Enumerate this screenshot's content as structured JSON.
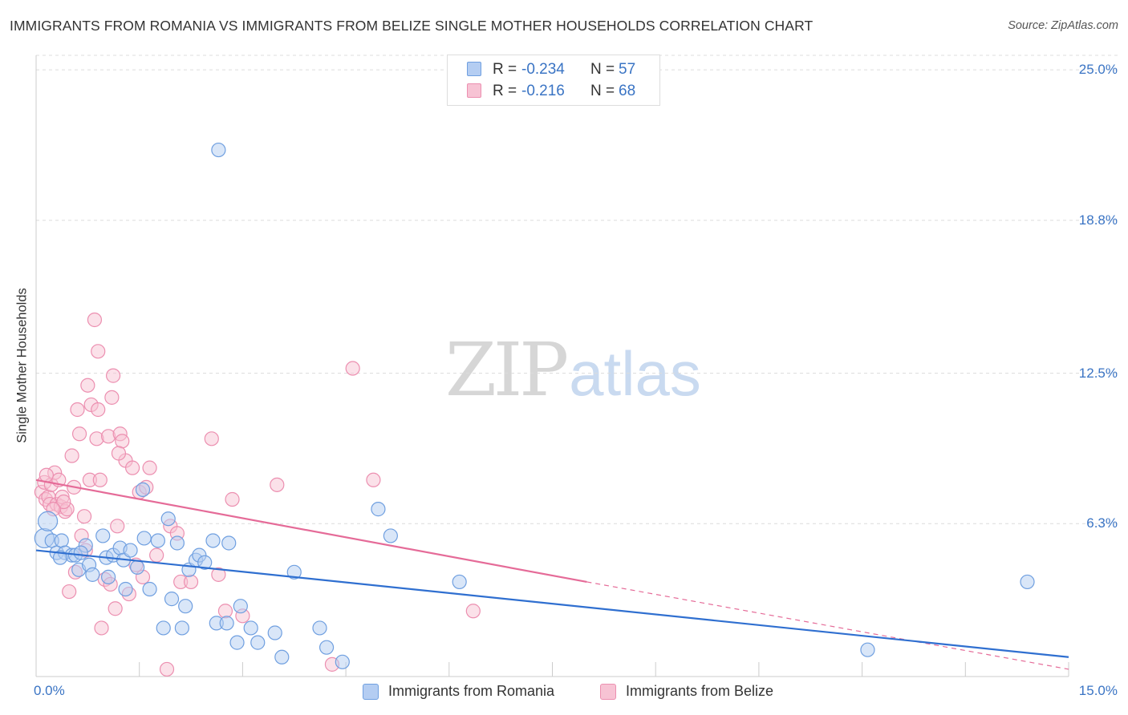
{
  "title": "IMMIGRANTS FROM ROMANIA VS IMMIGRANTS FROM BELIZE SINGLE MOTHER HOUSEHOLDS CORRELATION CHART",
  "source": "Source: ZipAtlas.com",
  "watermark": {
    "zip": "ZIP",
    "atlas": "atlas"
  },
  "colors": {
    "romania": "#6f9fe0",
    "romania_fill": "#b4cdf2",
    "belize": "#ec8fb0",
    "belize_fill": "#f7c3d4",
    "romania_line": "#2f6fd0",
    "belize_line": "#e56b98",
    "tick_text": "#3a74c4"
  },
  "legend": {
    "romania": {
      "r_label": "R =",
      "r_value": "-0.234",
      "n_label": "N =",
      "n_value": "57"
    },
    "belize": {
      "r_label": "R =",
      "r_value": "-0.216",
      "n_label": "N =",
      "n_value": "68"
    }
  },
  "chart_data": {
    "type": "scatter",
    "title": "IMMIGRANTS FROM ROMANIA VS IMMIGRANTS FROM BELIZE SINGLE MOTHER HOUSEHOLDS CORRELATION CHART",
    "xlabel": "",
    "ylabel": "Single Mother Households",
    "xlim": [
      0,
      15
    ],
    "ylim": [
      0,
      25.6
    ],
    "x_ticks": [
      {
        "value": 0,
        "label": "0.0%"
      },
      {
        "value": 15,
        "label": "15.0%"
      }
    ],
    "y_ticks": [
      {
        "value": 6.3,
        "label": "6.3%"
      },
      {
        "value": 12.5,
        "label": "12.5%"
      },
      {
        "value": 18.8,
        "label": "18.8%"
      },
      {
        "value": 25.0,
        "label": "25.0%"
      }
    ],
    "grid": true,
    "legend_position": "top-center",
    "series": [
      {
        "name": "Immigrants from Romania",
        "trend": {
          "x": [
            0,
            15
          ],
          "y": [
            5.2,
            0.8
          ]
        },
        "points": [
          [
            0.12,
            5.7
          ],
          [
            0.17,
            6.4
          ],
          [
            0.23,
            5.6
          ],
          [
            0.3,
            5.1
          ],
          [
            0.37,
            5.6
          ],
          [
            0.42,
            5.1
          ],
          [
            0.52,
            5.0
          ],
          [
            0.57,
            5.0
          ],
          [
            0.62,
            4.4
          ],
          [
            0.72,
            5.4
          ],
          [
            0.77,
            4.6
          ],
          [
            0.82,
            4.2
          ],
          [
            0.97,
            5.8
          ],
          [
            1.02,
            4.9
          ],
          [
            1.12,
            5.0
          ],
          [
            1.22,
            5.3
          ],
          [
            1.27,
            4.8
          ],
          [
            1.3,
            3.6
          ],
          [
            1.37,
            5.2
          ],
          [
            1.47,
            4.5
          ],
          [
            1.57,
            5.7
          ],
          [
            1.65,
            3.6
          ],
          [
            1.77,
            5.6
          ],
          [
            1.85,
            2.0
          ],
          [
            1.92,
            6.5
          ],
          [
            1.97,
            3.2
          ],
          [
            2.12,
            2.0
          ],
          [
            2.17,
            2.9
          ],
          [
            2.22,
            4.4
          ],
          [
            2.32,
            4.8
          ],
          [
            2.37,
            5.0
          ],
          [
            2.45,
            4.7
          ],
          [
            2.57,
            5.6
          ],
          [
            2.62,
            2.2
          ],
          [
            2.77,
            2.2
          ],
          [
            2.92,
            1.4
          ],
          [
            2.97,
            2.9
          ],
          [
            3.12,
            2.0
          ],
          [
            3.22,
            1.4
          ],
          [
            3.47,
            1.8
          ],
          [
            3.57,
            0.8
          ],
          [
            3.75,
            4.3
          ],
          [
            4.12,
            2.0
          ],
          [
            4.22,
            1.2
          ],
          [
            4.45,
            0.6
          ],
          [
            4.97,
            6.9
          ],
          [
            5.15,
            5.8
          ],
          [
            6.15,
            3.9
          ],
          [
            2.65,
            21.7
          ],
          [
            12.08,
            1.1
          ],
          [
            14.4,
            3.9
          ],
          [
            0.35,
            4.9
          ],
          [
            0.65,
            5.1
          ],
          [
            1.05,
            4.1
          ],
          [
            1.55,
            7.7
          ],
          [
            2.05,
            5.5
          ],
          [
            2.8,
            5.5
          ]
        ]
      },
      {
        "name": "Immigrants from Belize",
        "trend": {
          "x": [
            0,
            8
          ],
          "y": [
            8.1,
            3.9
          ]
        },
        "trend_dashed": {
          "x": [
            8,
            15
          ],
          "y": [
            3.9,
            0.3
          ]
        },
        "points": [
          [
            0.08,
            7.6
          ],
          [
            0.12,
            8.0
          ],
          [
            0.14,
            7.3
          ],
          [
            0.18,
            7.4
          ],
          [
            0.2,
            7.1
          ],
          [
            0.22,
            7.9
          ],
          [
            0.27,
            8.4
          ],
          [
            0.3,
            7.1
          ],
          [
            0.33,
            8.1
          ],
          [
            0.36,
            7.0
          ],
          [
            0.38,
            7.4
          ],
          [
            0.42,
            6.8
          ],
          [
            0.45,
            6.9
          ],
          [
            0.48,
            3.5
          ],
          [
            0.52,
            9.1
          ],
          [
            0.55,
            7.8
          ],
          [
            0.57,
            4.3
          ],
          [
            0.6,
            11.0
          ],
          [
            0.63,
            10.0
          ],
          [
            0.66,
            5.8
          ],
          [
            0.7,
            6.6
          ],
          [
            0.72,
            5.2
          ],
          [
            0.75,
            12.0
          ],
          [
            0.78,
            8.1
          ],
          [
            0.8,
            11.2
          ],
          [
            0.85,
            14.7
          ],
          [
            0.88,
            9.8
          ],
          [
            0.9,
            13.4
          ],
          [
            0.93,
            8.1
          ],
          [
            0.95,
            2.0
          ],
          [
            1.0,
            4.0
          ],
          [
            1.05,
            9.9
          ],
          [
            1.1,
            11.5
          ],
          [
            1.12,
            12.4
          ],
          [
            1.15,
            2.8
          ],
          [
            1.18,
            6.2
          ],
          [
            1.22,
            10.0
          ],
          [
            1.25,
            9.7
          ],
          [
            1.3,
            8.9
          ],
          [
            1.35,
            3.4
          ],
          [
            1.4,
            8.6
          ],
          [
            1.45,
            4.6
          ],
          [
            1.5,
            7.6
          ],
          [
            1.55,
            4.1
          ],
          [
            1.65,
            8.6
          ],
          [
            1.75,
            5.0
          ],
          [
            1.95,
            6.2
          ],
          [
            2.05,
            5.9
          ],
          [
            2.1,
            3.9
          ],
          [
            2.25,
            3.9
          ],
          [
            2.55,
            9.8
          ],
          [
            2.65,
            4.2
          ],
          [
            2.75,
            2.7
          ],
          [
            2.85,
            7.3
          ],
          [
            3.0,
            2.5
          ],
          [
            3.5,
            7.9
          ],
          [
            4.3,
            0.5
          ],
          [
            4.6,
            12.7
          ],
          [
            4.9,
            8.1
          ],
          [
            6.35,
            2.7
          ],
          [
            1.9,
            0.3
          ],
          [
            0.15,
            8.3
          ],
          [
            0.4,
            7.2
          ],
          [
            0.9,
            11.0
          ],
          [
            1.2,
            9.2
          ],
          [
            1.6,
            7.8
          ],
          [
            0.25,
            6.9
          ],
          [
            1.08,
            3.8
          ]
        ]
      }
    ]
  },
  "bottom_legend": {
    "romania": "Immigrants from Romania",
    "belize": "Immigrants from Belize"
  }
}
